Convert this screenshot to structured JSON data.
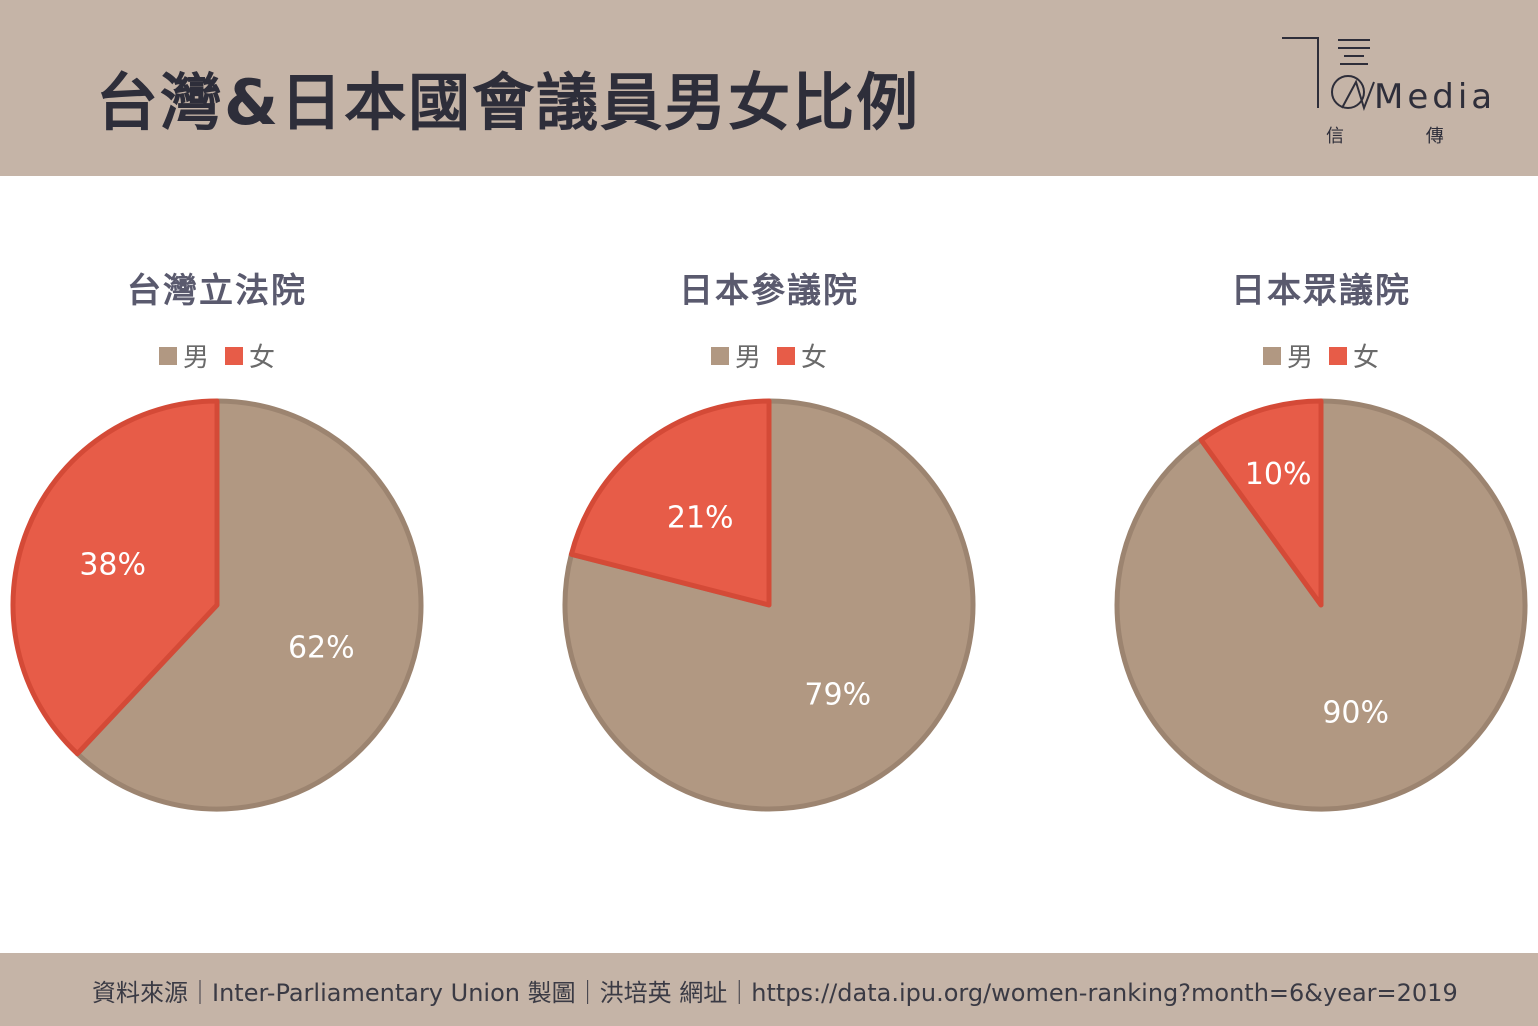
{
  "header": {
    "title": "台灣&日本國會議員男女比例",
    "logo_text": "Media",
    "logo_sub": "信 傳 媒"
  },
  "colors": {
    "male": "#b19882",
    "male_stroke": "#9c8470",
    "female": "#e75c48",
    "female_stroke": "#d44a37",
    "band": "#c5b4a7"
  },
  "chart_data": [
    {
      "type": "pie",
      "title": "台灣立法院",
      "legend": [
        "男",
        "女"
      ],
      "slices": [
        {
          "label": "男",
          "value": 62
        },
        {
          "label": "女",
          "value": 38
        }
      ],
      "data_labels": [
        "62%",
        "38%"
      ]
    },
    {
      "type": "pie",
      "title": "日本參議院",
      "legend": [
        "男",
        "女"
      ],
      "slices": [
        {
          "label": "男",
          "value": 79
        },
        {
          "label": "女",
          "value": 21
        }
      ],
      "data_labels": [
        "79%",
        "21%"
      ]
    },
    {
      "type": "pie",
      "title": "日本眾議院",
      "legend": [
        "男",
        "女"
      ],
      "slices": [
        {
          "label": "男",
          "value": 90
        },
        {
          "label": "女",
          "value": 10
        }
      ],
      "data_labels": [
        "90%",
        "10%"
      ]
    }
  ],
  "footer": {
    "text": "資料來源｜Inter-Parliamentary Union 製圖｜洪培英 網址｜https://data.ipu.org/women-ranking?month=6&year=2019"
  }
}
